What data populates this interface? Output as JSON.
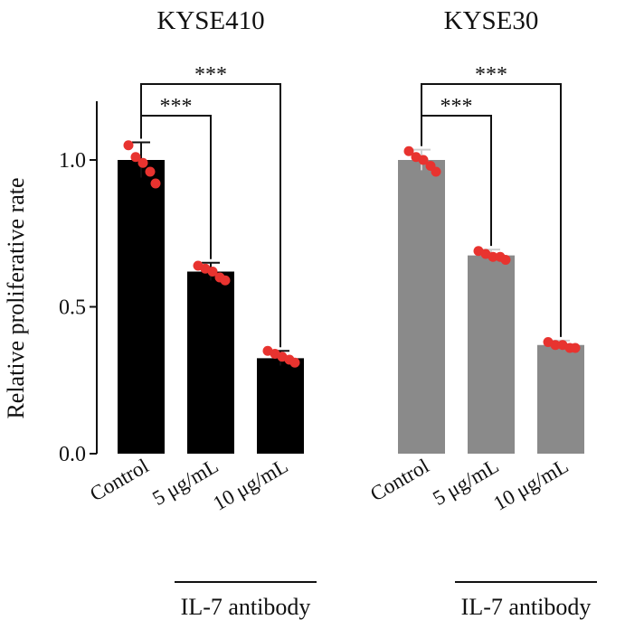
{
  "chart_data": {
    "type": "bar",
    "ylabel": "Relative proliferative rate",
    "ylim": [
      0,
      1.2
    ],
    "yticks": [
      {
        "value": 0.0,
        "label": "0.0"
      },
      {
        "value": 0.5,
        "label": "0.5"
      },
      {
        "value": 1.0,
        "label": "1.0"
      }
    ],
    "groups": [
      {
        "title": "KYSE410",
        "color": "#000000",
        "treatment_label": "IL-7 antibody",
        "categories": [
          "Control",
          "5 μg/mL",
          "10 μg/mL"
        ],
        "values": [
          1.0,
          0.62,
          0.325
        ],
        "errors": [
          0.06,
          0.03,
          0.025
        ],
        "points": [
          [
            1.05,
            1.01,
            0.99,
            0.96,
            0.92
          ],
          [
            0.64,
            0.63,
            0.62,
            0.6,
            0.59
          ],
          [
            0.35,
            0.34,
            0.33,
            0.32,
            0.31
          ]
        ],
        "significance": [
          {
            "from": 0,
            "to": 1,
            "label": "***"
          },
          {
            "from": 0,
            "to": 2,
            "label": "***"
          }
        ]
      },
      {
        "title": "KYSE30",
        "color": "#8a8a8a",
        "treatment_label": "IL-7 antibody",
        "categories": [
          "Control",
          "5 μg/mL",
          "10 μg/mL"
        ],
        "values": [
          1.0,
          0.675,
          0.37
        ],
        "errors": [
          0.035,
          0.02,
          0.015
        ],
        "points": [
          [
            1.03,
            1.01,
            1.0,
            0.98,
            0.96
          ],
          [
            0.69,
            0.68,
            0.67,
            0.67,
            0.66
          ],
          [
            0.38,
            0.37,
            0.37,
            0.36,
            0.36
          ]
        ],
        "significance": [
          {
            "from": 0,
            "to": 1,
            "label": "***"
          },
          {
            "from": 0,
            "to": 2,
            "label": "***"
          }
        ]
      }
    ],
    "point_color": "#e8332f"
  }
}
